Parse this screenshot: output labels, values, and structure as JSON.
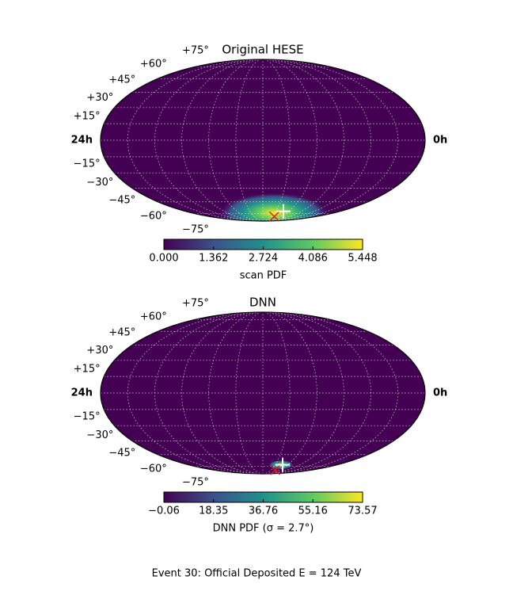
{
  "chart_data": [
    {
      "type": "skymap",
      "title": "Original HESE",
      "projection": "mollweide",
      "grid": true,
      "colormap": "viridis",
      "lat_ticks": [
        {
          "value": 75,
          "label": "+75°"
        },
        {
          "value": 60,
          "label": "+60°"
        },
        {
          "value": 45,
          "label": "+45°"
        },
        {
          "value": 30,
          "label": "+30°"
        },
        {
          "value": 15,
          "label": "+15°"
        },
        {
          "value": -15,
          "label": "−15°"
        },
        {
          "value": -30,
          "label": "−30°"
        },
        {
          "value": -45,
          "label": "−45°"
        },
        {
          "value": -60,
          "label": "−60°"
        },
        {
          "value": -75,
          "label": "−75°"
        }
      ],
      "lon_labels": [
        "24h",
        "0h"
      ],
      "colorbar": {
        "label": "scan PDF",
        "lim": [
          0,
          5.448
        ],
        "ticks": [
          {
            "value": 0,
            "label": "0.000"
          },
          1.362,
          2.724,
          4.086,
          5.448
        ]
      },
      "markers": [
        {
          "ra": 9.4,
          "dec": -80,
          "color": "#e8141c",
          "symbol": "x"
        },
        {
          "ra": 8.8,
          "dec": -72,
          "color": "#ffffff",
          "symbol": "plus"
        }
      ]
    },
    {
      "type": "skymap",
      "title": "DNN",
      "projection": "mollweide",
      "grid": true,
      "colormap": "viridis",
      "lat_ticks": [
        {
          "value": 75,
          "label": "+75°"
        },
        {
          "value": 60,
          "label": "+60°"
        },
        {
          "value": 45,
          "label": "+45°"
        },
        {
          "value": 30,
          "label": "+30°"
        },
        {
          "value": 15,
          "label": "+15°"
        },
        {
          "value": -15,
          "label": "−15°"
        },
        {
          "value": -30,
          "label": "−30°"
        },
        {
          "value": -45,
          "label": "−45°"
        },
        {
          "value": -60,
          "label": "−60°"
        },
        {
          "value": -75,
          "label": "−75°"
        }
      ],
      "lon_labels": [
        "24h",
        "0h"
      ],
      "colorbar": {
        "label": "DNN PDF (σ = 2.7°)",
        "lim": [
          -0.06,
          73.57
        ],
        "ticks": [
          {
            "value": -0.06,
            "label": "−0.06"
          },
          18.35,
          36.76,
          55.16,
          73.57
        ]
      },
      "markers": [
        {
          "ra": 9.0,
          "dec": -81,
          "color": "#e8141c",
          "symbol": "x"
        },
        {
          "ra": 8.8,
          "dec": -73,
          "color": "#ffffff",
          "symbol": "plus"
        }
      ]
    }
  ],
  "caption": "Event 30: Official Deposited E = 124 TeV"
}
